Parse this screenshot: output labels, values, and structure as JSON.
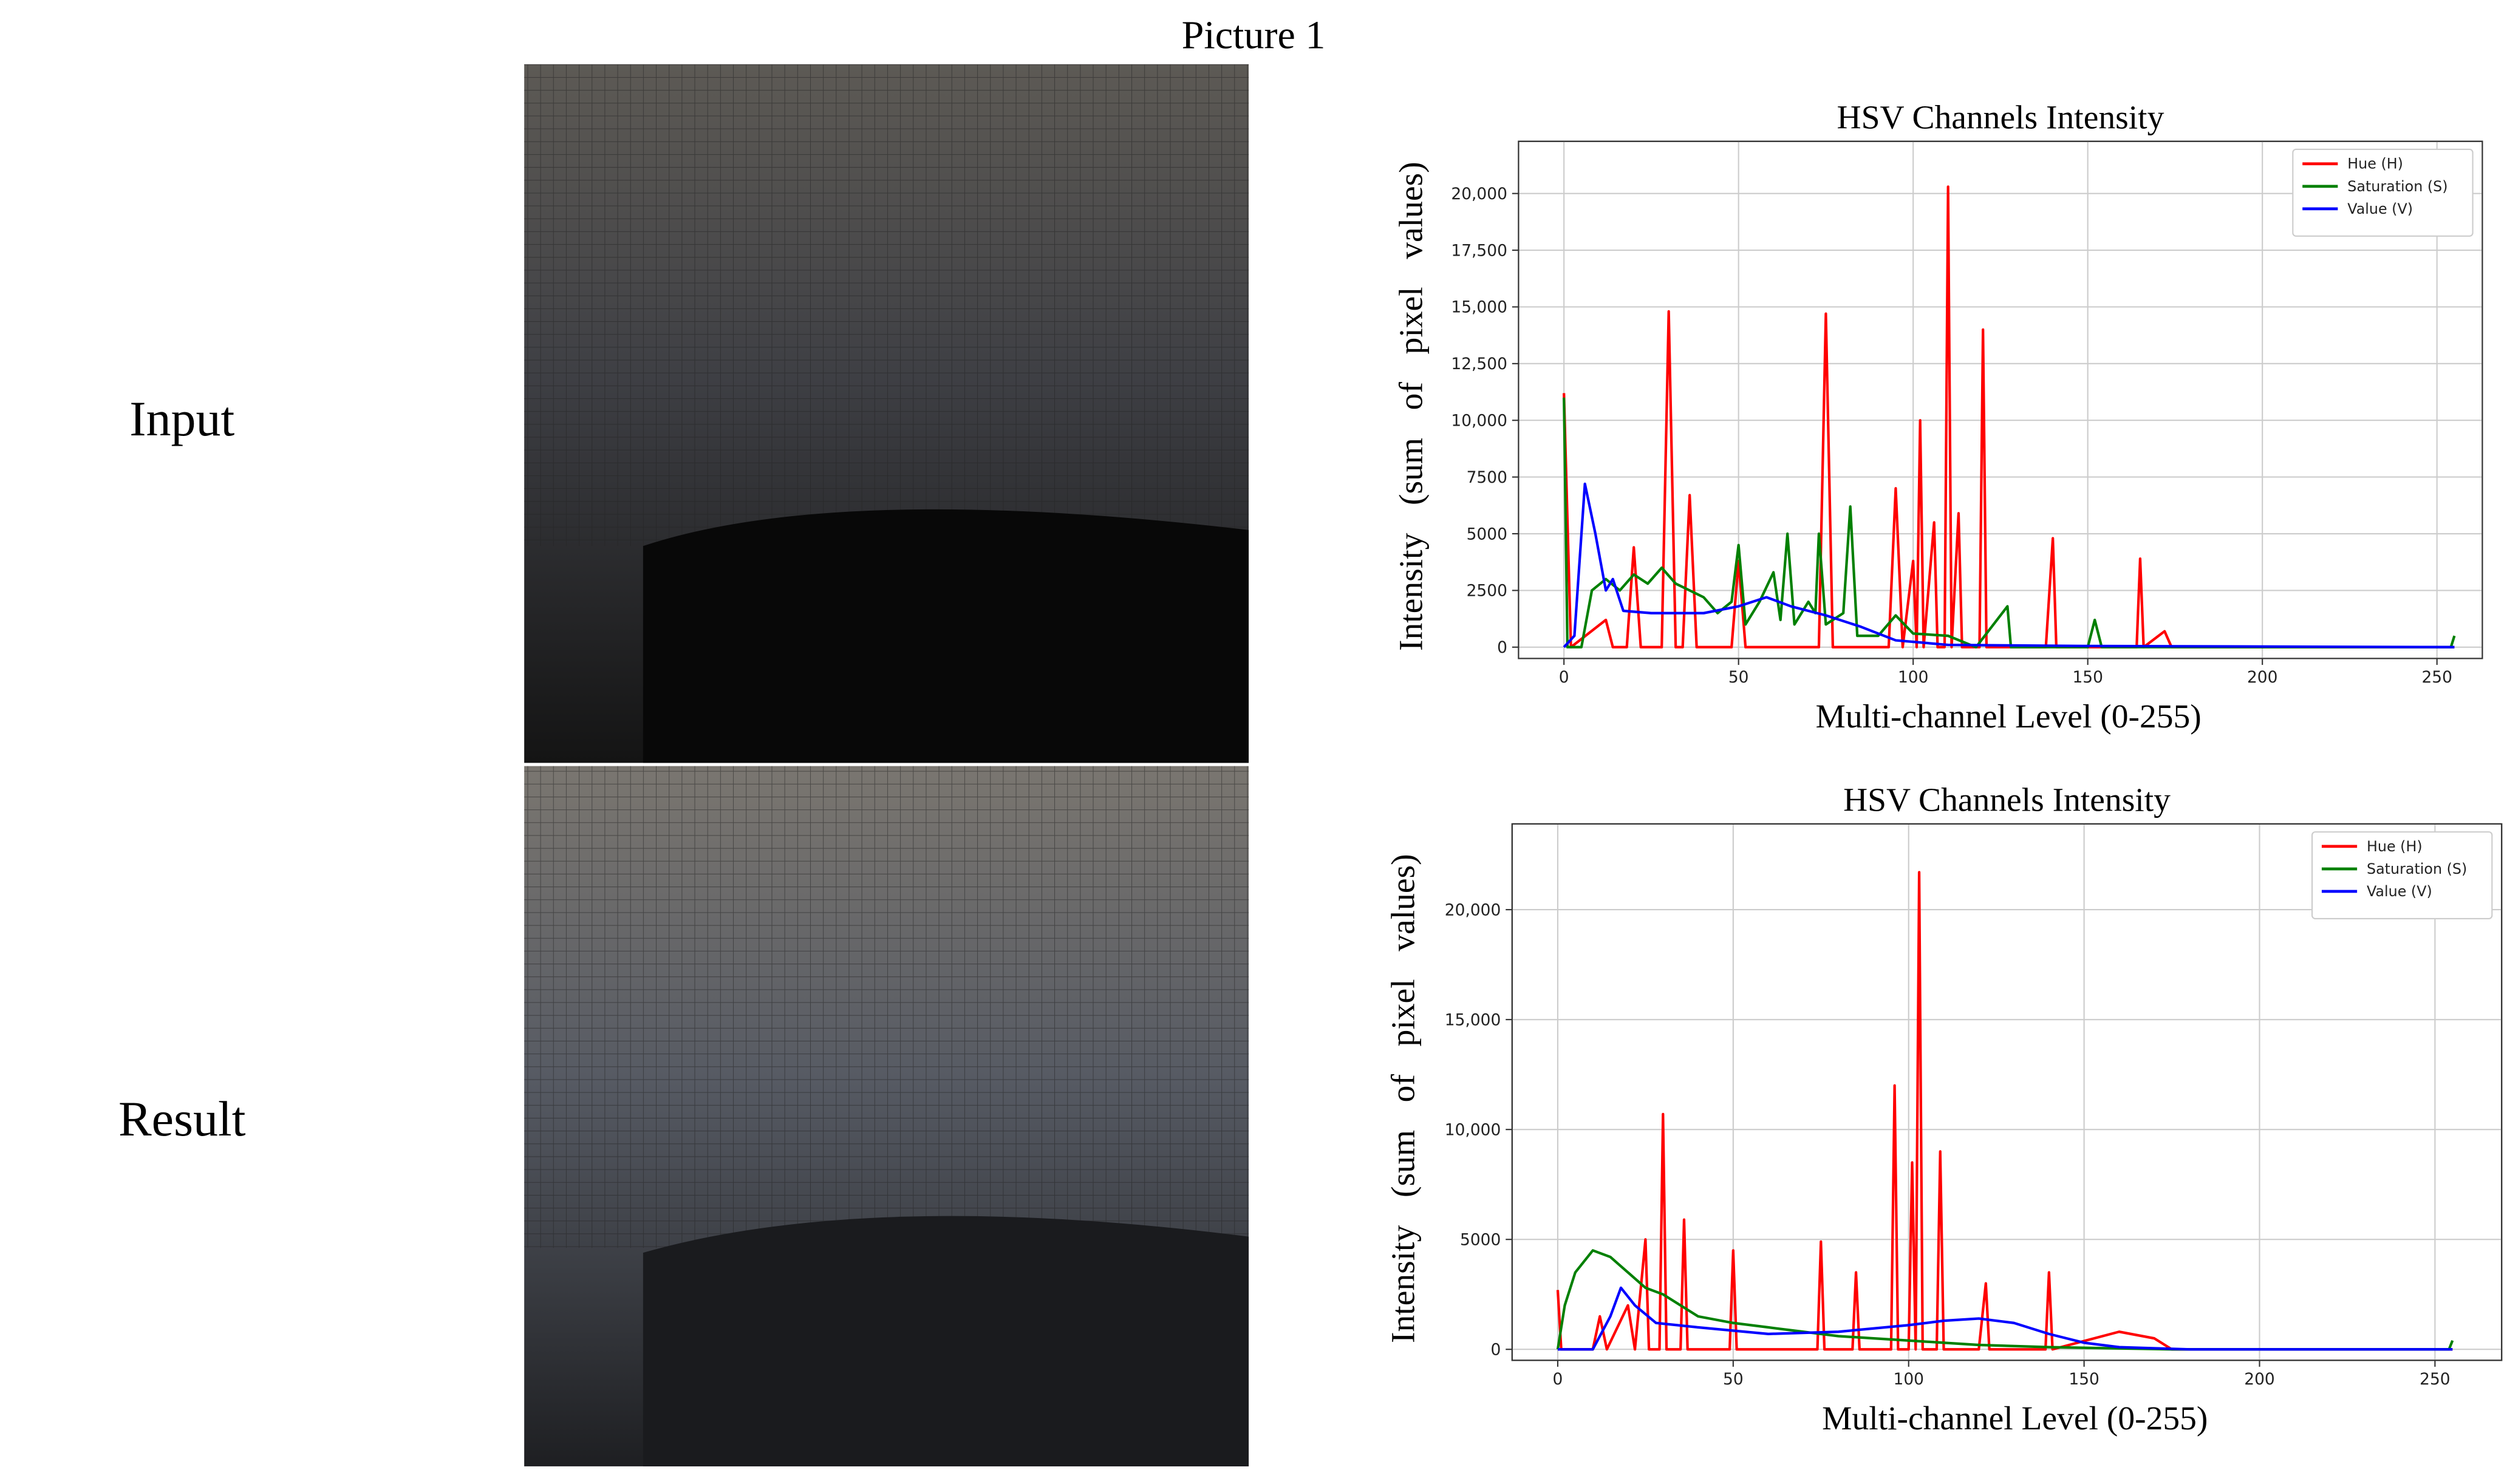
{
  "figure": {
    "title": "Picture 1",
    "row_labels": [
      "Input",
      "Result"
    ]
  },
  "chart_data": [
    {
      "type": "line",
      "title": "HSV Channels Intensity",
      "xlabel": "Multi-channel Level (0-255)",
      "ylabel": "Intensity (sum of pixel values)",
      "xlim": [
        -13,
        263
      ],
      "ylim": [
        -500,
        22300
      ],
      "xticks": [
        0,
        50,
        100,
        150,
        200,
        250
      ],
      "yticks": [
        0,
        2500,
        5000,
        7500,
        {
          "value": 10000,
          "label": "10,000"
        },
        {
          "value": 12500,
          "label": "12,500"
        },
        {
          "value": 15000,
          "label": "15,000"
        },
        {
          "value": 17500,
          "label": "17,500"
        },
        {
          "value": 20000,
          "label": "20,000"
        }
      ],
      "grid": true,
      "legend": "upper right",
      "series": [
        {
          "name": "Hue (H)",
          "color": "#ff0000",
          "x": [
            0,
            2,
            12,
            14,
            18,
            20,
            22,
            28,
            30,
            32,
            34,
            36,
            38,
            48,
            50,
            52,
            73,
            75,
            77,
            93,
            95,
            97,
            100,
            101,
            102,
            103,
            106,
            107,
            109,
            110,
            111,
            113,
            114,
            119,
            120,
            121,
            138,
            140,
            141,
            164,
            165,
            166,
            172,
            174,
            255
          ],
          "values": [
            11200,
            0,
            1200,
            0,
            0,
            4400,
            0,
            0,
            14800,
            0,
            0,
            6700,
            0,
            0,
            3800,
            0,
            0,
            14700,
            0,
            0,
            7000,
            0,
            3800,
            0,
            10000,
            0,
            5500,
            0,
            0,
            20300,
            0,
            5900,
            0,
            0,
            14000,
            0,
            0,
            4800,
            0,
            0,
            3900,
            0,
            700,
            0,
            0
          ]
        },
        {
          "name": "Saturation (S)",
          "color": "#008000",
          "x": [
            0,
            1,
            5,
            8,
            12,
            16,
            20,
            24,
            28,
            32,
            36,
            40,
            44,
            48,
            50,
            52,
            56,
            60,
            62,
            64,
            66,
            70,
            72,
            73,
            75,
            80,
            82,
            84,
            90,
            95,
            100,
            110,
            118,
            127,
            128,
            150,
            152,
            154,
            254,
            255
          ],
          "values": [
            11000,
            0,
            0,
            2500,
            3000,
            2500,
            3200,
            2800,
            3500,
            2800,
            2500,
            2200,
            1500,
            2000,
            4500,
            1000,
            2000,
            3300,
            1200,
            5000,
            1000,
            2000,
            1500,
            5000,
            1000,
            1500,
            6200,
            500,
            500,
            1400,
            600,
            500,
            0,
            1800,
            0,
            0,
            1200,
            0,
            0,
            500
          ]
        },
        {
          "name": "Value (V)",
          "color": "#0000ff",
          "x": [
            0,
            3,
            6,
            9,
            12,
            14,
            17,
            25,
            40,
            50,
            58,
            65,
            75,
            85,
            95,
            110,
            150,
            255
          ],
          "values": [
            0,
            500,
            7200,
            5000,
            2500,
            3000,
            1600,
            1500,
            1500,
            1800,
            2200,
            1800,
            1400,
            900,
            300,
            100,
            50,
            0
          ]
        }
      ]
    },
    {
      "type": "line",
      "title": "HSV Channels Intensity",
      "xlabel": "Multi-channel Level (0-255)",
      "ylabel": "Intensity (sum of pixel values)",
      "xlim": [
        -13,
        269
      ],
      "ylim": [
        -500,
        23900
      ],
      "xticks": [
        0,
        50,
        100,
        150,
        200,
        250
      ],
      "yticks": [
        0,
        5000,
        {
          "value": 10000,
          "label": "10,000"
        },
        {
          "value": 15000,
          "label": "15,000"
        },
        {
          "value": 20000,
          "label": "20,000"
        }
      ],
      "grid": true,
      "legend": "upper right",
      "series": [
        {
          "name": "Hue (H)",
          "color": "#ff0000",
          "x": [
            0,
            1,
            10,
            12,
            14,
            20,
            22,
            25,
            26,
            29,
            30,
            31,
            35,
            36,
            37,
            49,
            50,
            51,
            74,
            75,
            76,
            84,
            85,
            86,
            95,
            96,
            97,
            100,
            101,
            102,
            103,
            104,
            108,
            109,
            110,
            120,
            122,
            123,
            139,
            140,
            141,
            160,
            170,
            175,
            255
          ],
          "values": [
            2700,
            0,
            0,
            1500,
            0,
            2000,
            0,
            5000,
            0,
            0,
            10700,
            0,
            0,
            5900,
            0,
            0,
            4500,
            0,
            0,
            4900,
            0,
            0,
            3500,
            0,
            0,
            12000,
            0,
            0,
            8500,
            0,
            21700,
            0,
            0,
            9000,
            0,
            0,
            3000,
            0,
            0,
            3500,
            0,
            800,
            500,
            0,
            0
          ]
        },
        {
          "name": "Saturation (S)",
          "color": "#008000",
          "x": [
            0,
            2,
            5,
            10,
            15,
            20,
            25,
            30,
            35,
            40,
            50,
            60,
            70,
            80,
            90,
            100,
            120,
            140,
            175,
            254,
            255
          ],
          "values": [
            0,
            2000,
            3500,
            4500,
            4200,
            3500,
            2800,
            2500,
            2000,
            1500,
            1200,
            1000,
            800,
            600,
            500,
            400,
            200,
            100,
            0,
            0,
            400
          ]
        },
        {
          "name": "Value (V)",
          "color": "#0000ff",
          "x": [
            0,
            10,
            15,
            18,
            22,
            28,
            40,
            60,
            80,
            100,
            110,
            120,
            130,
            140,
            150,
            160,
            180,
            255
          ],
          "values": [
            0,
            0,
            1500,
            2800,
            2000,
            1200,
            1000,
            700,
            800,
            1100,
            1300,
            1400,
            1200,
            700,
            300,
            100,
            0,
            0
          ]
        }
      ]
    }
  ]
}
